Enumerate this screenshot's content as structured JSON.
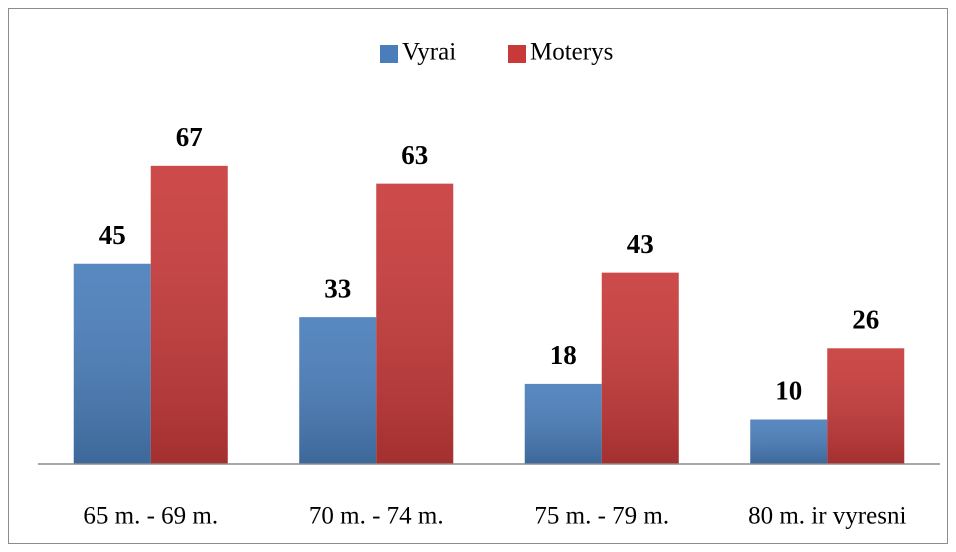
{
  "chart_data": {
    "type": "bar",
    "categories": [
      "65 m. - 69 m.",
      "70 m. - 74 m.",
      "75 m. - 79 m.",
      "80 m. ir vyresni"
    ],
    "series": [
      {
        "name": "Vyrai",
        "color": "#4a7ebb",
        "values": [
          45,
          33,
          18,
          10
        ]
      },
      {
        "name": "Moterys",
        "color": "#c83a3a",
        "values": [
          67,
          63,
          43,
          26
        ]
      }
    ],
    "ylim": [
      0,
      80
    ],
    "legend": "top"
  }
}
